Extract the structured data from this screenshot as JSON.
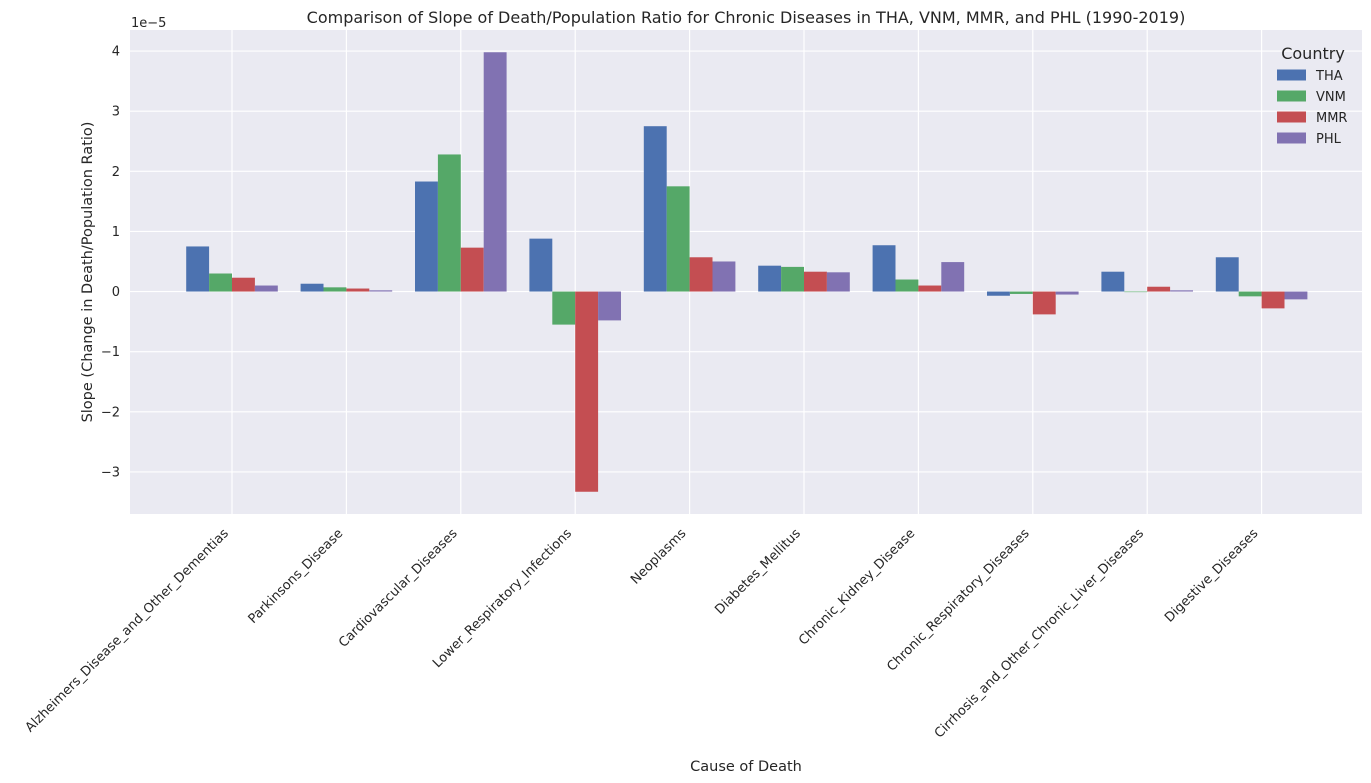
{
  "chart_data": {
    "type": "bar",
    "title": "Comparison of Slope of Death/Population Ratio for Chronic Diseases in THA, VNM, MMR, and PHL (1990-2019)",
    "xlabel": "Cause of Death",
    "ylabel": "Slope (Change in Death/Population Ratio)",
    "y_scale_label": "1e−5",
    "y_scale": 1e-05,
    "ylim": [
      -3.7,
      4.35
    ],
    "yticks": [
      -3,
      -2,
      -1,
      0,
      1,
      2,
      3,
      4
    ],
    "ytick_labels": [
      "−3",
      "−2",
      "−1",
      "0",
      "1",
      "2",
      "3",
      "4"
    ],
    "grid": true,
    "legend": {
      "title": "Country",
      "position": "top-right"
    },
    "categories": [
      "Alzheimers_Disease_and_Other_Dementias",
      "Parkinsons_Disease",
      "Cardiovascular_Diseases",
      "Lower_Respiratory_Infections",
      "Neoplasms",
      "Diabetes_Mellitus",
      "Chronic_Kidney_Disease",
      "Chronic_Respiratory_Diseases",
      "Cirrhosis_and_Other_Chronic_Liver_Diseases",
      "Digestive_Diseases"
    ],
    "series": [
      {
        "name": "THA",
        "color": "#4c72b0",
        "values": [
          0.75,
          0.13,
          1.83,
          0.88,
          2.75,
          0.43,
          0.77,
          -0.07,
          0.33,
          0.57
        ]
      },
      {
        "name": "VNM",
        "color": "#55a868",
        "values": [
          0.3,
          0.07,
          2.28,
          -0.55,
          1.75,
          0.41,
          0.2,
          -0.04,
          0.0,
          -0.08
        ]
      },
      {
        "name": "MMR",
        "color": "#c44e52",
        "values": [
          0.23,
          0.05,
          0.73,
          -3.33,
          0.57,
          0.33,
          0.1,
          -0.38,
          0.08,
          -0.28
        ]
      },
      {
        "name": "PHL",
        "color": "#8172b2",
        "values": [
          0.1,
          0.02,
          3.98,
          -0.48,
          0.5,
          0.32,
          0.49,
          -0.05,
          0.02,
          -0.13
        ]
      }
    ]
  }
}
